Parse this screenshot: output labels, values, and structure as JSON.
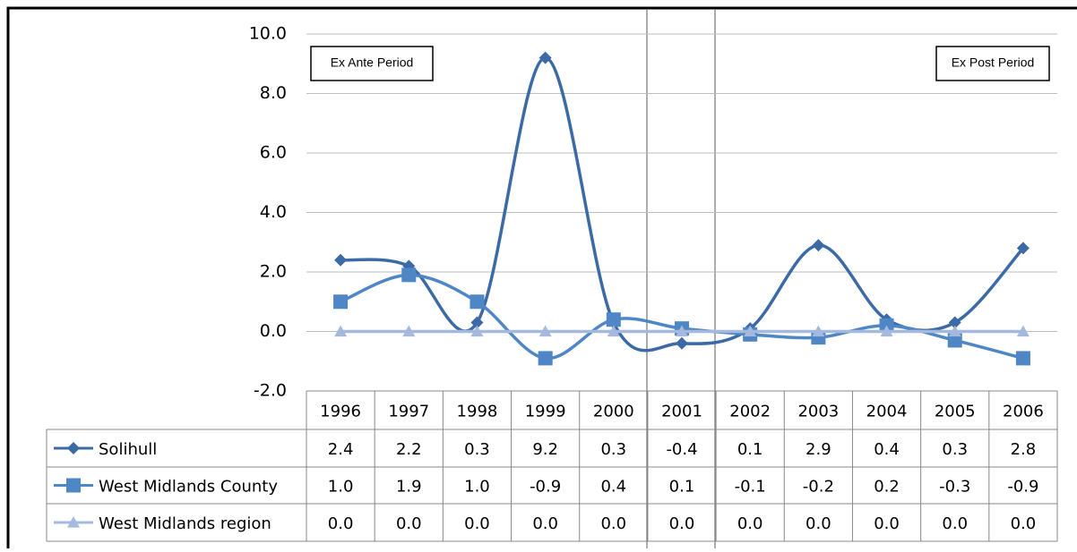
{
  "chart_data": {
    "type": "line",
    "categories": [
      "1996",
      "1997",
      "1998",
      "1999",
      "2000",
      "2001",
      "2002",
      "2003",
      "2004",
      "2005",
      "2006"
    ],
    "series": [
      {
        "name": "Solihull",
        "color": "#3b6aa6",
        "marker": "diamond",
        "values": [
          2.4,
          2.2,
          0.3,
          9.2,
          0.3,
          -0.4,
          0.1,
          2.9,
          0.4,
          0.3,
          2.8
        ],
        "value_labels": [
          "2.4",
          "2.2",
          "0.3",
          "9.2",
          "0.3",
          "-0.4",
          "0.1",
          "2.9",
          "0.4",
          "0.3",
          "2.8"
        ]
      },
      {
        "name": "West Midlands County",
        "color": "#4f86c6",
        "marker": "square",
        "values": [
          1.0,
          1.9,
          1.0,
          -0.9,
          0.4,
          0.1,
          -0.1,
          -0.2,
          0.2,
          -0.3,
          -0.9
        ],
        "value_labels": [
          "1.0",
          "1.9",
          "1.0",
          "-0.9",
          "0.4",
          "0.1",
          "-0.1",
          "-0.2",
          "0.2",
          "-0.3",
          "-0.9"
        ]
      },
      {
        "name": "West Midlands region",
        "color": "#a5b9de",
        "marker": "triangle",
        "values": [
          0,
          0,
          0,
          0,
          0,
          0,
          0,
          0,
          0,
          0,
          0
        ],
        "value_labels": [
          "0.0",
          "0.0",
          "0.0",
          "0.0",
          "0.0",
          "0.0",
          "0.0",
          "0.0",
          "0.0",
          "0.0",
          "0.0"
        ]
      }
    ],
    "ylim": [
      -2,
      10
    ],
    "yticks": [
      {
        "value": -2,
        "label": "-2.0"
      },
      {
        "value": 0,
        "label": "0.0"
      },
      {
        "value": 2,
        "label": "2.0"
      },
      {
        "value": 4,
        "label": "4.0"
      },
      {
        "value": 6,
        "label": "6.0"
      },
      {
        "value": 8,
        "label": "8.0"
      },
      {
        "value": 10,
        "label": "10.0"
      }
    ],
    "grid": true,
    "annotations": [
      "Ex Ante Period",
      "Ex Post Period"
    ]
  }
}
